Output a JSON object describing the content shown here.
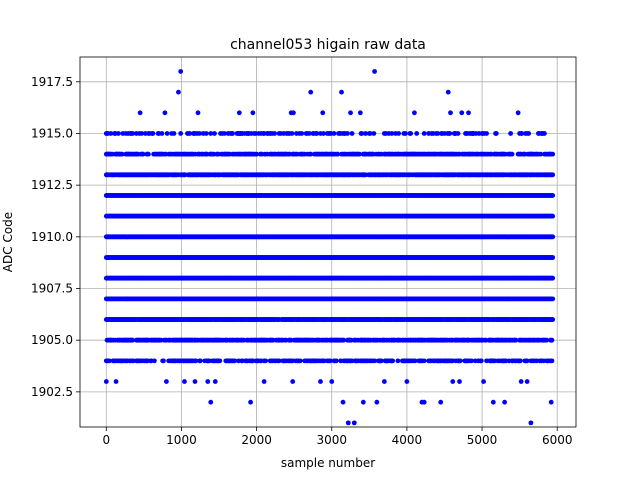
{
  "chart_data": {
    "type": "scatter",
    "title": "channel053 higain raw data",
    "xlabel": "sample number",
    "ylabel": "ADC Code",
    "xlim": [
      -350,
      6250
    ],
    "ylim": [
      1900.8,
      1918.7
    ],
    "xticks": [
      0,
      1000,
      2000,
      3000,
      4000,
      5000,
      6000
    ],
    "xtick_labels": [
      "0",
      "1000",
      "2000",
      "3000",
      "4000",
      "5000",
      "6000"
    ],
    "yticks": [
      1902.5,
      1905.0,
      1907.5,
      1910.0,
      1912.5,
      1915.0,
      1917.5
    ],
    "ytick_labels": [
      "1902.5",
      "1905.0",
      "1907.5",
      "1910.0",
      "1912.5",
      "1915.0",
      "1917.5"
    ],
    "grid": true,
    "marker_color": "#0000ff",
    "x_range": [
      0,
      5940
    ],
    "levels": [
      {
        "y": 1901,
        "x": [
          3220,
          3300,
          5650
        ]
      },
      {
        "y": 1902,
        "x": [
          1390,
          1920,
          3150,
          3420,
          3600,
          4200,
          4230,
          4450,
          5150,
          5300,
          5920
        ]
      },
      {
        "y": 1903,
        "x": [
          0,
          130,
          800,
          1040,
          1180,
          1350,
          1450,
          2100,
          2480,
          2850,
          3000,
          3700,
          4000,
          4610,
          4700,
          5020,
          5520,
          5600
        ]
      },
      {
        "y": 1904,
        "density": 0.45
      },
      {
        "y": 1905,
        "density": 0.7
      },
      {
        "y": 1906,
        "density": 0.95
      },
      {
        "y": 1907,
        "density": 1.0
      },
      {
        "y": 1908,
        "density": 1.0
      },
      {
        "y": 1909,
        "density": 1.0
      },
      {
        "y": 1910,
        "density": 1.0
      },
      {
        "y": 1911,
        "density": 1.0
      },
      {
        "y": 1912,
        "density": 1.0
      },
      {
        "y": 1913,
        "density": 0.85
      },
      {
        "y": 1914,
        "density": 0.55
      },
      {
        "y": 1915,
        "density": 0.25
      },
      {
        "y": 1916,
        "x": [
          450,
          780,
          1220,
          1770,
          1950,
          2460,
          2490,
          2880,
          3250,
          3380,
          4100,
          4580,
          4730,
          4820,
          5480
        ]
      },
      {
        "y": 1917,
        "x": [
          960,
          2720,
          3130,
          4550
        ]
      },
      {
        "y": 1918,
        "x": [
          990,
          3570
        ]
      }
    ]
  }
}
